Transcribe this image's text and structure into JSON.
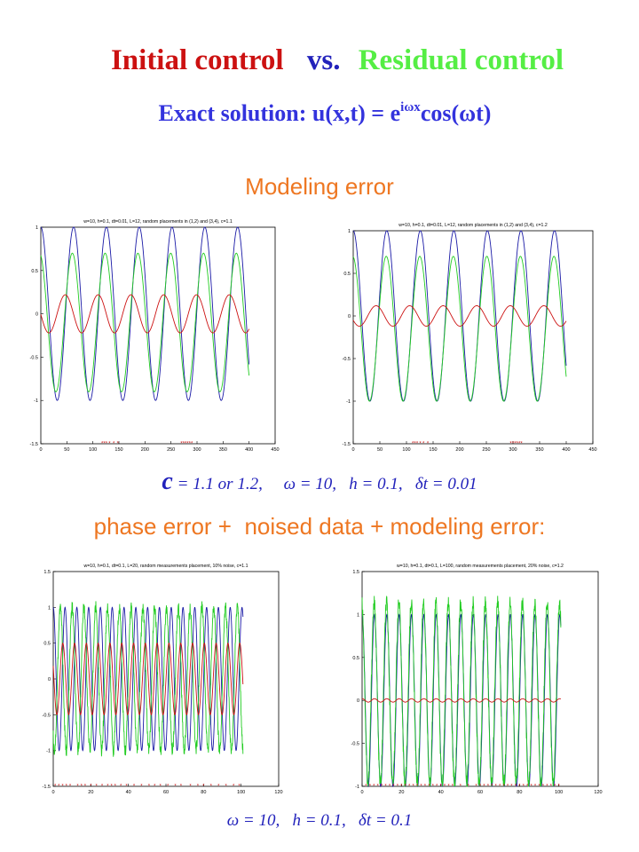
{
  "title": {
    "initial": "Initial control",
    "vs": "vs.",
    "residual": "Residual control"
  },
  "subtitle": {
    "prefix": "Exact solution: u(x,t) = e",
    "exponent": "iωx",
    "suffix": "cos(ωt)"
  },
  "section1_label": "Modeling error",
  "params1": {
    "c_symbol": "c",
    "text": " = 1.1 or 1.2,     ω = 10,   h = 0.1,   δt = 0.01"
  },
  "section2_label": "phase error +  noised data + modeling error:",
  "params2": "ω = 10,   h = 0.1,   δt = 0.1",
  "colors": {
    "title_red": "#cc1111",
    "title_blue": "#2222bb",
    "title_green": "#55ee44",
    "subtitle_blue": "#3333dd",
    "label_orange": "#ee7722",
    "series_exact": "#1a1aa6",
    "series_control": "#22cc22",
    "series_residual": "#cc1111"
  },
  "chart_data": [
    {
      "type": "line",
      "title": "w=10, h=0.1, dt=0.01, L=12, random placements in (1,2) and (3,4), c=1.1",
      "xlim": [
        0,
        450
      ],
      "ylim": [
        -1.5,
        1
      ],
      "xticks": [
        "0",
        "50",
        "100",
        "150",
        "200",
        "250",
        "300",
        "350",
        "400",
        "450"
      ],
      "yticks": [
        "-1.5",
        "-1",
        "-0.5",
        "0",
        "0.5",
        "1"
      ],
      "series": [
        {
          "color": "blue",
          "x_end": 400,
          "amplitude": 1.0,
          "period": 63,
          "phase": 0,
          "offset": 0
        },
        {
          "color": "green",
          "x_end": 400,
          "amplitude": 0.8,
          "period": 63,
          "phase": 0.25,
          "offset": -0.1
        },
        {
          "color": "red",
          "x_end": 400,
          "amplitude": 0.22,
          "period": 63,
          "phase": 1.6,
          "offset": 0
        }
      ],
      "markers_x": [
        118,
        122,
        126,
        132,
        140,
        148,
        270,
        274,
        278,
        282,
        286,
        290
      ]
    },
    {
      "type": "line",
      "title": "w=10, h=0.1, dt=0.01, L=12, random placements in (1,2) and (3,4), c=1.2",
      "xlim": [
        0,
        450
      ],
      "ylim": [
        -1.5,
        1
      ],
      "xticks": [
        "0",
        "50",
        "100",
        "150",
        "200",
        "250",
        "300",
        "350",
        "400",
        "450"
      ],
      "yticks": [
        "-1.5",
        "-1",
        "-0.5",
        "0",
        "0.5",
        "1"
      ],
      "series": [
        {
          "color": "blue",
          "x_end": 400,
          "amplitude": 1.0,
          "period": 63,
          "phase": 0,
          "offset": 0
        },
        {
          "color": "green",
          "x_end": 400,
          "amplitude": 0.85,
          "period": 63,
          "phase": 0.1,
          "offset": -0.15
        },
        {
          "color": "red",
          "x_end": 400,
          "amplitude": 0.12,
          "period": 63,
          "phase": 2.0,
          "offset": 0
        }
      ],
      "markers_x": [
        112,
        116,
        120,
        126,
        132,
        140,
        296,
        300,
        304,
        308,
        312,
        316
      ]
    },
    {
      "type": "line",
      "title": "w=10, h=0.1, dt=0.1, L=20, random measurements placement, 10% noise, c=1.1",
      "xlim": [
        0,
        120
      ],
      "ylim": [
        -1.5,
        1.5
      ],
      "xticks": [
        "0",
        "20",
        "40",
        "60",
        "80",
        "100",
        "120"
      ],
      "yticks": [
        "-1.5",
        "-1",
        "-0.5",
        "0",
        "0.5",
        "1",
        "1.5"
      ],
      "series": [
        {
          "color": "blue",
          "x_end": 101,
          "amplitude": 1.0,
          "period": 6.28,
          "phase": 0,
          "offset": 0
        },
        {
          "color": "green",
          "x_end": 101,
          "amplitude": 1.0,
          "period": 6.28,
          "phase": 2.5,
          "offset": 0
        },
        {
          "color": "red",
          "x_end": 101,
          "amplitude": 0.5,
          "period": 6.28,
          "phase": 1.2,
          "offset": 0
        }
      ],
      "markers_x": [
        1,
        3,
        5,
        7,
        9,
        13,
        15,
        17,
        20,
        23,
        26,
        29,
        31,
        33,
        36,
        39,
        43,
        47,
        51,
        54,
        57,
        61,
        65,
        68,
        73,
        77,
        80,
        84,
        88,
        92,
        96,
        99
      ]
    },
    {
      "type": "line",
      "title": "w=10, h=0.1, dt=0.1, L=100, random measurements placement, 20% noise, c=1.2",
      "xlim": [
        0,
        120
      ],
      "ylim": [
        -1,
        1.5
      ],
      "xticks": [
        "0",
        "20",
        "40",
        "60",
        "80",
        "100",
        "120"
      ],
      "yticks": [
        "-1",
        "-0.5",
        "0",
        "0.5",
        "1",
        "1.5"
      ],
      "series": [
        {
          "color": "blue",
          "x_end": 101,
          "amplitude": 1.0,
          "period": 6.28,
          "phase": 0,
          "offset": 0
        },
        {
          "color": "green",
          "x_end": 101,
          "amplitude": 1.05,
          "period": 6.28,
          "phase": 0.15,
          "offset": 0.08
        },
        {
          "color": "red",
          "x_end": 101,
          "amplitude": 0.02,
          "period": 6.28,
          "phase": 0,
          "offset": 0
        }
      ],
      "markers_x": [
        2,
        4,
        6,
        8,
        10,
        12,
        14,
        16,
        18,
        20,
        22,
        24,
        26,
        28,
        30,
        32,
        34,
        36,
        38,
        40,
        42,
        44,
        46,
        50,
        54,
        58,
        60,
        62,
        64,
        66,
        68,
        70,
        72,
        74,
        76,
        78,
        80,
        82,
        84,
        86,
        88,
        90,
        92,
        94,
        96,
        98,
        100
      ]
    }
  ]
}
